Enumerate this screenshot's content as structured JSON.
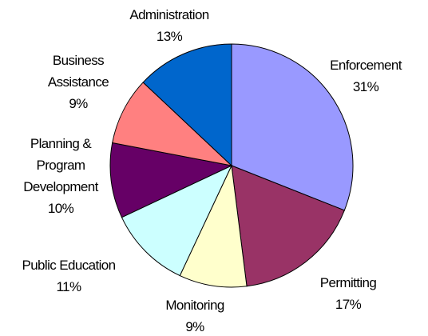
{
  "chart_data": {
    "type": "pie",
    "categories": [
      "Enforcement",
      "Permitting",
      "Monitoring",
      "Public Education",
      "Planning & Program Development",
      "Business Assistance",
      "Administration"
    ],
    "values": [
      31,
      17,
      9,
      11,
      10,
      9,
      13
    ],
    "value_labels": [
      "31%",
      "17%",
      "9%",
      "11%",
      "10%",
      "9%",
      "13%"
    ],
    "colors": [
      "#9999ff",
      "#993366",
      "#ffffcc",
      "#ccffff",
      "#660066",
      "#ff8080",
      "#0066cc"
    ]
  }
}
